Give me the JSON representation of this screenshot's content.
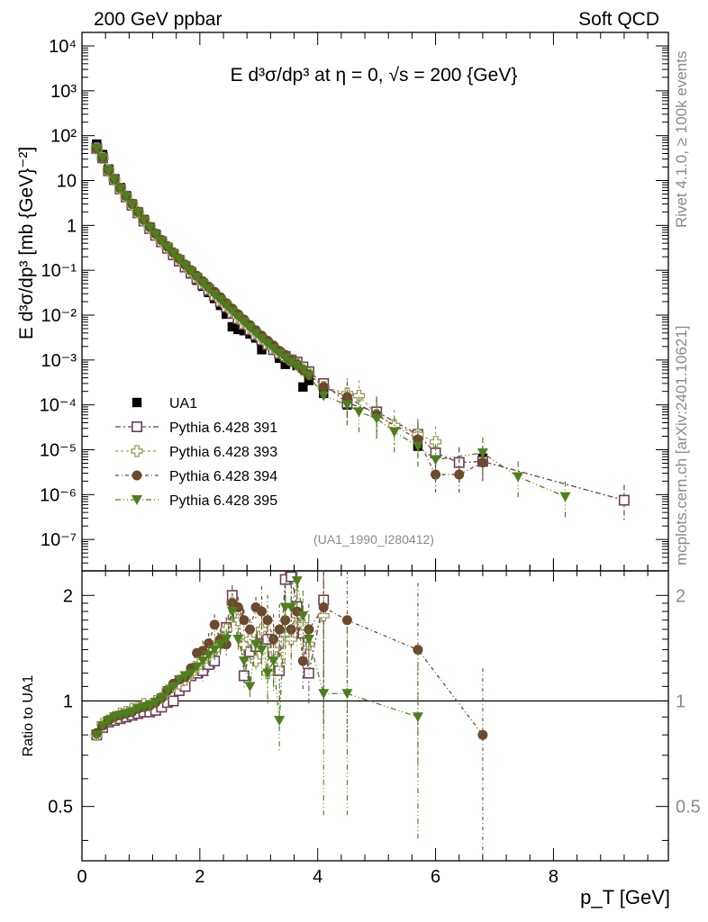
{
  "header": {
    "left": "200 GeV ppbar",
    "right": "Soft QCD"
  },
  "side_labels": {
    "rivet": "Rivet 4.1.0, ≥ 100k events",
    "mcplots": "mcplots.cern.ch [arXiv:2401.10621]"
  },
  "chart_data": {
    "type": "scatter",
    "title": "E d³σ/dp³ at η = 0, √s = 200 {GeV}",
    "analysis_tag": "(UA1_1990_I280412)",
    "xlabel": "p_T [GeV]",
    "ylabel": "E d³σ/dp³ [mb {GeV}⁻²]",
    "ratio_ylabel": "Ratio to UA1",
    "xlim": [
      0,
      9.95
    ],
    "ylim_main": [
      2e-08,
      20000
    ],
    "ylim_ratio": [
      0.35,
      2.35
    ],
    "main_yticks": [
      "10^4",
      "10^3",
      "10^2",
      "10",
      "1",
      "10^-1",
      "10^-2",
      "10^-3",
      "10^-4",
      "10^-5",
      "10^-6",
      "10^-7"
    ],
    "main_ytick_values": [
      10000,
      1000,
      100,
      10,
      1,
      0.1,
      0.01,
      0.001,
      0.0001,
      1e-05,
      1e-06,
      1e-07
    ],
    "xticks": [
      0,
      2,
      4,
      6,
      8
    ],
    "ratio_yticks": [
      {
        "value": 0.5,
        "label": "0.5"
      },
      {
        "value": 1,
        "label": "1"
      },
      {
        "value": 2,
        "label": "2"
      }
    ],
    "legend_position": "lower-left",
    "series": [
      {
        "name": "UA1",
        "color": "#000000",
        "marker": "square",
        "x": [
          0.25,
          0.35,
          0.45,
          0.55,
          0.65,
          0.75,
          0.85,
          0.95,
          1.05,
          1.15,
          1.25,
          1.35,
          1.45,
          1.55,
          1.65,
          1.75,
          1.85,
          1.95,
          2.05,
          2.15,
          2.25,
          2.35,
          2.45,
          2.55,
          2.65,
          2.75,
          2.85,
          2.95,
          3.05,
          3.15,
          3.25,
          3.35,
          3.45,
          3.55,
          3.65,
          3.75,
          3.85,
          4.1,
          4.5,
          5.7,
          6.8
        ],
        "y": [
          65,
          38,
          18,
          11,
          7,
          4.6,
          3,
          2,
          1.35,
          0.92,
          0.64,
          0.45,
          0.32,
          0.225,
          0.16,
          0.115,
          0.083,
          0.06,
          0.044,
          0.032,
          0.0235,
          0.0165,
          0.0105,
          0.0055,
          0.0048,
          0.0045,
          0.0038,
          0.0031,
          0.0017,
          0.0024,
          0.0018,
          0.0011,
          0.0008,
          0.0009,
          0.00075,
          0.00025,
          0.00035,
          0.00018,
          0.0001,
          1.2e-05,
          6.5e-06
        ],
        "ratio": null
      },
      {
        "name": "Pythia 6.428 391",
        "color": "#6b3f59",
        "marker": "open-square",
        "x": [
          0.25,
          0.35,
          0.45,
          0.55,
          0.65,
          0.75,
          0.85,
          0.95,
          1.05,
          1.15,
          1.25,
          1.35,
          1.45,
          1.55,
          1.65,
          1.75,
          1.85,
          1.95,
          2.05,
          2.15,
          2.25,
          2.35,
          2.45,
          2.55,
          2.65,
          2.75,
          2.85,
          2.95,
          3.05,
          3.15,
          3.25,
          3.35,
          3.45,
          3.55,
          3.65,
          3.75,
          3.85,
          4.1,
          4.5,
          5.0,
          5.7,
          6.0,
          6.4,
          6.8,
          9.2
        ],
        "y": [
          52,
          32,
          16.5,
          10.5,
          6.5,
          4.3,
          2.8,
          1.9,
          1.25,
          0.85,
          0.6,
          0.43,
          0.31,
          0.22,
          0.16,
          0.118,
          0.087,
          0.065,
          0.048,
          0.036,
          0.027,
          0.02,
          0.015,
          0.011,
          0.0082,
          0.0062,
          0.0047,
          0.0036,
          0.0028,
          0.0022,
          0.0017,
          0.0014,
          0.0012,
          0.001,
          0.0009,
          0.0007,
          0.00055,
          0.0003,
          0.00011,
          7e-05,
          2.2e-05,
          8.5e-06,
          5.2e-06,
          5.5e-06,
          7.5e-07
        ],
        "ratio_x": [
          0.25,
          0.35,
          0.45,
          0.55,
          0.65,
          0.75,
          0.85,
          0.95,
          1.05,
          1.15,
          1.25,
          1.35,
          1.45,
          1.55,
          1.65,
          1.75,
          1.85,
          1.95,
          2.05,
          2.15,
          2.25,
          2.35,
          2.45,
          2.55,
          2.65,
          2.75,
          2.85,
          2.95,
          3.05,
          3.15,
          3.25,
          3.35,
          3.45,
          3.55,
          3.65,
          3.75,
          3.85,
          4.1
        ],
        "ratio": [
          0.8,
          0.84,
          0.87,
          0.88,
          0.89,
          0.9,
          0.91,
          0.92,
          0.93,
          0.93,
          0.94,
          0.96,
          0.99,
          1.0,
          1.07,
          1.1,
          1.18,
          1.2,
          1.22,
          1.27,
          1.3,
          1.46,
          1.62,
          2.0,
          1.78,
          1.18,
          1.38,
          1.43,
          1.55,
          1.5,
          1.36,
          1.22,
          2.22,
          2.26,
          1.86,
          1.56,
          1.2,
          1.94
        ]
      },
      {
        "name": "Pythia 6.428 393",
        "color": "#9c9c5c",
        "marker": "open-cross",
        "x": [
          0.25,
          0.35,
          0.45,
          0.55,
          0.65,
          0.75,
          0.85,
          0.95,
          1.05,
          1.15,
          1.25,
          1.35,
          1.45,
          1.55,
          1.65,
          1.75,
          1.85,
          1.95,
          2.05,
          2.15,
          2.25,
          2.35,
          2.45,
          2.55,
          2.65,
          2.75,
          2.85,
          2.95,
          3.05,
          3.15,
          3.25,
          3.35,
          3.45,
          3.55,
          3.65,
          3.75,
          3.85,
          4.1,
          4.5,
          4.7,
          5.0,
          5.3,
          5.7,
          6.0
        ],
        "y": [
          52,
          32,
          16.5,
          10.5,
          6.6,
          4.4,
          2.9,
          1.95,
          1.3,
          0.89,
          0.63,
          0.45,
          0.33,
          0.24,
          0.175,
          0.128,
          0.095,
          0.071,
          0.053,
          0.04,
          0.03,
          0.022,
          0.0165,
          0.0123,
          0.0093,
          0.007,
          0.0053,
          0.004,
          0.003,
          0.0024,
          0.0019,
          0.0015,
          0.0012,
          0.001,
          0.0008,
          0.0006,
          0.0005,
          0.00025,
          0.00018,
          0.00016,
          6e-05,
          3.5e-05,
          2.2e-05,
          1.5e-05
        ],
        "ratio_x": [
          0.25,
          0.35,
          0.45,
          0.55,
          0.65,
          0.75,
          0.85,
          0.95,
          1.05,
          1.15,
          1.25,
          1.35,
          1.45,
          1.55,
          1.65,
          1.75,
          1.85,
          1.95,
          2.05,
          2.15,
          2.25,
          2.35,
          2.45,
          2.55,
          2.65,
          2.75,
          2.85,
          2.95,
          3.05,
          3.15,
          3.25,
          3.35,
          3.45,
          3.55,
          3.65,
          3.75,
          3.85,
          4.1
        ],
        "ratio": [
          0.8,
          0.86,
          0.88,
          0.9,
          0.92,
          0.93,
          0.95,
          0.96,
          0.98,
          0.97,
          1.0,
          1.02,
          1.07,
          1.1,
          1.12,
          1.15,
          1.2,
          1.25,
          1.3,
          1.35,
          1.4,
          1.5,
          1.6,
          1.9,
          1.7,
          1.45,
          1.5,
          1.3,
          1.6,
          1.2,
          1.4,
          1.3,
          1.55,
          1.5,
          1.75,
          1.65,
          1.45,
          1.75
        ]
      },
      {
        "name": "Pythia 6.428 394",
        "color": "#6b4a2e",
        "marker": "circle",
        "x": [
          0.25,
          0.35,
          0.45,
          0.55,
          0.65,
          0.75,
          0.85,
          0.95,
          1.05,
          1.15,
          1.25,
          1.35,
          1.45,
          1.55,
          1.65,
          1.75,
          1.85,
          1.95,
          2.05,
          2.15,
          2.25,
          2.35,
          2.45,
          2.55,
          2.65,
          2.75,
          2.85,
          2.95,
          3.05,
          3.15,
          3.25,
          3.35,
          3.45,
          3.55,
          3.65,
          3.75,
          3.85,
          4.1,
          4.5,
          5.0,
          5.7,
          6.0,
          6.4,
          6.8
        ],
        "y": [
          52,
          32,
          16.8,
          10.7,
          6.8,
          4.5,
          3,
          2,
          1.33,
          0.92,
          0.65,
          0.47,
          0.34,
          0.25,
          0.18,
          0.133,
          0.1,
          0.075,
          0.057,
          0.043,
          0.033,
          0.025,
          0.0185,
          0.014,
          0.0105,
          0.008,
          0.006,
          0.0046,
          0.0035,
          0.0027,
          0.0021,
          0.0016,
          0.0013,
          0.001,
          0.0008,
          0.0006,
          0.00048,
          0.00025,
          0.00015,
          6e-05,
          1.7e-05,
          2.8e-06,
          2.8e-06,
          5.2e-06
        ],
        "ratio_x": [
          0.25,
          0.35,
          0.45,
          0.55,
          0.65,
          0.75,
          0.85,
          0.95,
          1.05,
          1.15,
          1.25,
          1.35,
          1.45,
          1.55,
          1.65,
          1.75,
          1.85,
          1.95,
          2.05,
          2.15,
          2.25,
          2.35,
          2.45,
          2.55,
          2.65,
          2.75,
          2.85,
          2.95,
          3.05,
          3.15,
          3.25,
          3.35,
          3.45,
          3.55,
          3.65,
          3.75,
          3.85,
          4.1,
          4.5,
          5.7,
          6.8
        ],
        "ratio": [
          0.81,
          0.85,
          0.88,
          0.9,
          0.91,
          0.92,
          0.93,
          0.95,
          0.96,
          0.97,
          0.99,
          1.02,
          1.07,
          1.12,
          1.15,
          1.17,
          1.24,
          1.37,
          1.39,
          1.46,
          1.65,
          1.5,
          1.45,
          1.9,
          1.85,
          1.7,
          1.6,
          1.85,
          1.8,
          1.7,
          1.5,
          1.6,
          1.7,
          1.6,
          1.8,
          1.3,
          1.6,
          1.85,
          1.7,
          1.4,
          0.8
        ]
      },
      {
        "name": "Pythia 6.428 395",
        "color": "#4e7f1e",
        "marker": "triangle-down",
        "x": [
          0.25,
          0.35,
          0.45,
          0.55,
          0.65,
          0.75,
          0.85,
          0.95,
          1.05,
          1.15,
          1.25,
          1.35,
          1.45,
          1.55,
          1.65,
          1.75,
          1.85,
          1.95,
          2.05,
          2.15,
          2.25,
          2.35,
          2.45,
          2.55,
          2.65,
          2.75,
          2.85,
          2.95,
          3.05,
          3.15,
          3.25,
          3.35,
          3.45,
          3.55,
          3.65,
          3.75,
          3.85,
          4.1,
          4.5,
          4.7,
          5.0,
          5.3,
          5.7,
          6.0,
          6.8,
          7.4,
          8.2
        ],
        "y": [
          52,
          32,
          16.5,
          10.5,
          6.6,
          4.4,
          2.9,
          1.95,
          1.3,
          0.9,
          0.63,
          0.45,
          0.33,
          0.24,
          0.175,
          0.128,
          0.095,
          0.07,
          0.052,
          0.039,
          0.029,
          0.022,
          0.0165,
          0.0123,
          0.0092,
          0.007,
          0.0053,
          0.004,
          0.003,
          0.0023,
          0.0018,
          0.0014,
          0.0011,
          0.0009,
          0.00075,
          0.0006,
          0.00045,
          0.00016,
          0.0001,
          7e-05,
          5e-05,
          2.5e-05,
          1.2e-05,
          6e-06,
          8.5e-06,
          2.5e-06,
          9e-07
        ],
        "ratio_x": [
          0.25,
          0.35,
          0.45,
          0.55,
          0.65,
          0.75,
          0.85,
          0.95,
          1.05,
          1.15,
          1.25,
          1.35,
          1.45,
          1.55,
          1.65,
          1.75,
          1.85,
          1.95,
          2.05,
          2.15,
          2.25,
          2.35,
          2.45,
          2.55,
          2.65,
          2.75,
          2.85,
          2.95,
          3.05,
          3.15,
          3.25,
          3.35,
          3.45,
          3.55,
          3.65,
          3.75,
          3.85,
          4.1,
          4.5,
          5.7
        ],
        "ratio": [
          0.8,
          0.85,
          0.88,
          0.9,
          0.91,
          0.92,
          0.93,
          0.95,
          0.96,
          0.97,
          0.99,
          1.02,
          1.07,
          1.1,
          1.15,
          1.18,
          1.2,
          1.25,
          1.3,
          1.35,
          1.4,
          1.45,
          1.5,
          1.8,
          1.5,
          1.3,
          1.1,
          1.45,
          1.4,
          1.2,
          1.3,
          0.88,
          1.85,
          1.85,
          2.2,
          1.75,
          1.5,
          1.05,
          1.05,
          0.9
        ]
      }
    ]
  }
}
